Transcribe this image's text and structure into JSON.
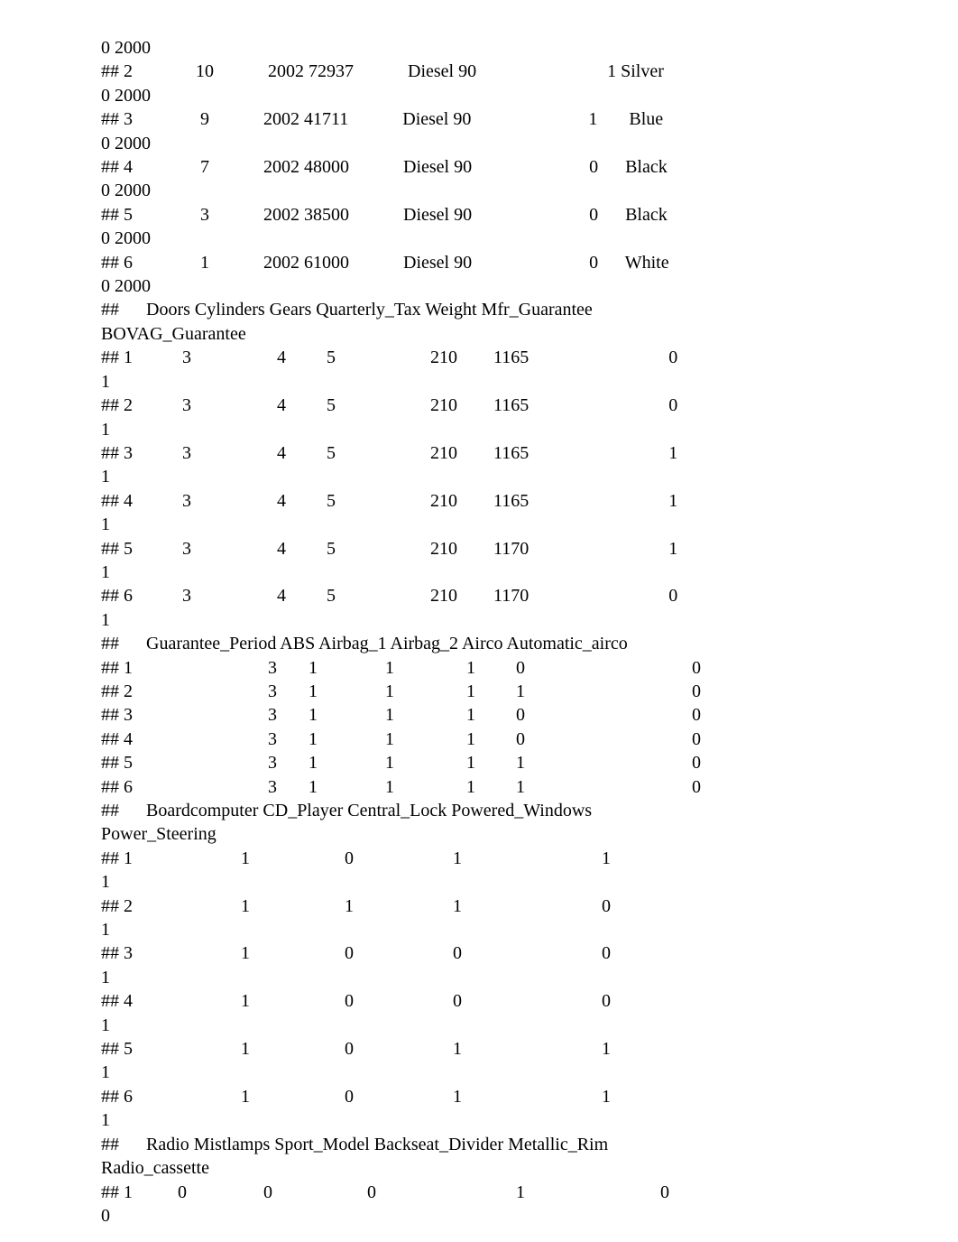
{
  "lines": [
    "0 2000",
    "## 2              10            2002 72937            Diesel 90                             1 Silver             ",
    "0 2000",
    "## 3               9            2002 41711            Diesel 90                          1       Blue             ",
    "0 2000",
    "## 4               7            2002 48000            Diesel 90                          0      Black             ",
    "0 2000",
    "## 5               3            2002 38500            Diesel 90                          0      Black             ",
    "0 2000",
    "## 6               1            2002 61000            Diesel 90                          0      White             ",
    "0 2000",
    "##      Doors Cylinders Gears Quarterly_Tax Weight Mfr_Guarantee",
    "BOVAG_Guarantee",
    "## 1           3                   4         5                     210        1165                               0           ",
    "1",
    "## 2           3                   4         5                     210        1165                               0           ",
    "1",
    "## 3           3                   4         5                     210        1165                               1           ",
    "1",
    "## 4           3                   4         5                     210        1165                               1           ",
    "1",
    "## 5           3                   4         5                     210        1170                               1           ",
    "1",
    "## 6           3                   4         5                     210        1170                               0           ",
    "1",
    "##      Guarantee_Period ABS Airbag_1 Airbag_2 Airco Automatic_airco",
    "## 1                              3       1               1                1         0                                     0",
    "## 2                              3       1               1                1         1                                     0",
    "## 3                              3       1               1                1         0                                     0",
    "## 4                              3       1               1                1         0                                     0",
    "## 5                              3       1               1                1         1                                     0",
    "## 6                              3       1               1                1         1                                     0",
    "##      Boardcomputer CD_Player Central_Lock Powered_Windows",
    "Power_Steering",
    "## 1                        1                     0                      1                               1           ",
    "1",
    "## 2                        1                     1                      1                               0           ",
    "1",
    "## 3                        1                     0                      0                               0           ",
    "1",
    "## 4                        1                     0                      0                               0           ",
    "1",
    "## 5                        1                     0                      1                               1           ",
    "1",
    "## 6                        1                     0                      1                               1           ",
    "1",
    "##      Radio Mistlamps Sport_Model Backseat_Divider Metallic_Rim",
    "Radio_cassette",
    "## 1          0                 0                     0                               1                              0  ",
    "0"
  ]
}
